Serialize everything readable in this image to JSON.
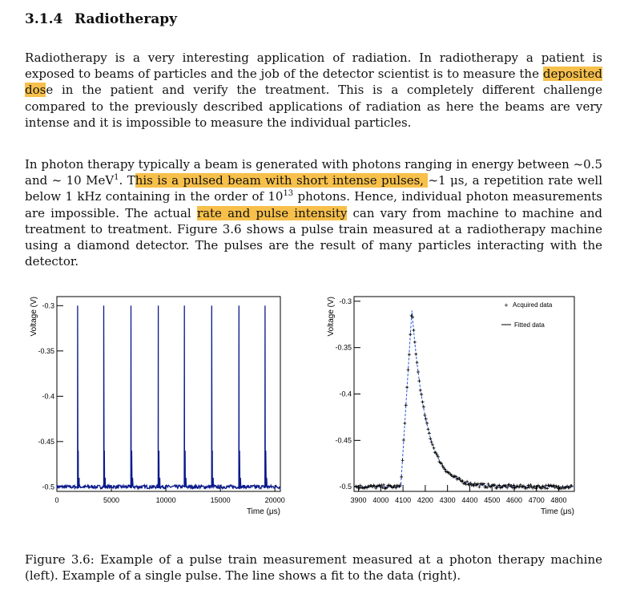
{
  "section": {
    "number": "3.1.4",
    "title": "Radiotherapy"
  },
  "paragraph1": {
    "before": "Radiotherapy is a very interesting application of radiation. In radiotherapy a patient is exposed to beams of particles and the job of the detector scientist is to measure the ",
    "highlight": "deposited dos",
    "after": "e in the patient and verify the treatment. This is a completely different challenge compared to the previously described applications of radiation as here the beams are very intense and it is impossible to measure the individual particles."
  },
  "paragraph2": {
    "t1": "In photon therapy typically a beam is generated with photons ranging in energy between ~0.5 and ~ 10 MeV",
    "sup1": "1",
    "t2": ". T",
    "hl1": "his is a pulsed beam with short intense pulses, ",
    "t3": "~1 μs, a repetition rate well below 1 kHz containing in the order of 10",
    "sup2": "13",
    "t4": " photons. Hence, individual photon measurements are impossible. The actual ",
    "hl2": "rate and pulse intensity",
    "t5": " can vary from machine to machine and treatment to treatment. Figure 3.6 shows a pulse train measured at a radiotherapy machine using a diamond detector. The pulses are the result of many particles interacting with the detector."
  },
  "caption": "Figure 3.6: Example of a pulse train measurement measured at a photon therapy machine (left). Example of a single pulse. The line shows a fit to the data (right).",
  "colors": {
    "highlight": "#f7c04a",
    "trace": "#0a1a8c",
    "fit": "#2255dd"
  },
  "chart_data": [
    {
      "type": "line",
      "xlabel": "Time (μs)",
      "ylabel": "Voltage (V)",
      "xlim": [
        0,
        20500
      ],
      "ylim": [
        -0.505,
        -0.29
      ],
      "xticks": [
        0,
        5000,
        10000,
        15000,
        20000
      ],
      "xtick_labels": [
        "0",
        "5000",
        "10000",
        "15000",
        "20000"
      ],
      "yticks": [
        -0.3,
        -0.35,
        -0.4,
        -0.45,
        -0.5
      ],
      "ytick_labels": [
        "-0.3",
        "-0.35",
        "-0.4",
        "-0.45",
        "-0.5"
      ],
      "baseline": -0.5,
      "pulse_times": [
        1900,
        4300,
        6800,
        9300,
        11700,
        14200,
        16700,
        19100
      ],
      "pulse_peaks": [
        -0.3,
        -0.3,
        -0.3,
        -0.3,
        -0.3,
        -0.3,
        -0.3,
        -0.3
      ],
      "series": [
        {
          "values": []
        }
      ]
    },
    {
      "type": "scatter",
      "xlabel": "Time (μs)",
      "ylabel": "Voltage (V)",
      "xlim": [
        3880,
        4870
      ],
      "ylim": [
        -0.505,
        -0.295
      ],
      "xticks": [
        3900,
        4000,
        4100,
        4200,
        4300,
        4400,
        4500,
        4600,
        4700,
        4800
      ],
      "xtick_labels": [
        "3900",
        "4000",
        "4100",
        "4200",
        "4300",
        "4400",
        "4500",
        "4600",
        "4700",
        "4800"
      ],
      "yticks": [
        -0.3,
        -0.35,
        -0.4,
        -0.45,
        -0.5
      ],
      "ytick_labels": [
        "-0.3",
        "-0.35",
        "-0.4",
        "-0.45",
        "-0.5"
      ],
      "legend_position": "top-right",
      "pulse": {
        "start": 4090,
        "peak_time": 4140,
        "peak_value": -0.31,
        "baseline": -0.5,
        "decay": 65
      },
      "series": [
        {
          "name": "Acquired data",
          "style": "markers"
        },
        {
          "name": "Fitted data",
          "style": "line"
        }
      ]
    }
  ]
}
